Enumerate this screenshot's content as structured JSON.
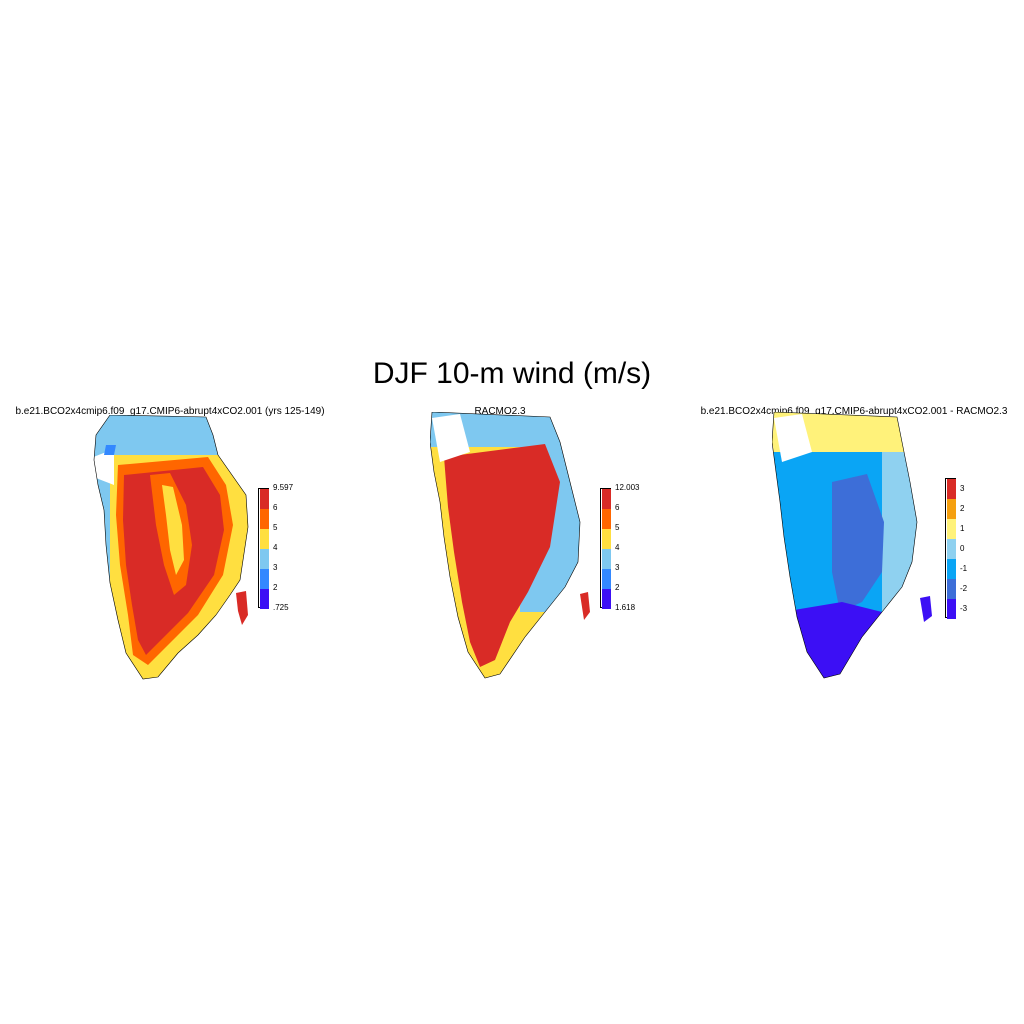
{
  "title": "DJF 10-m wind (m/s)",
  "panels": [
    {
      "id": "p1",
      "title": "b.e21.BCO2x4cmip6.f09_g17.CMIP6-abrupt4xCO2.001 (yrs 125-149)",
      "colorbar": {
        "colors": [
          "#3c0ff5",
          "#3388ff",
          "#7ec8f0",
          "#ffdf40",
          "#ff6600",
          "#d92b26"
        ],
        "labels": [
          ".725",
          "2",
          "3",
          "4",
          "5",
          "6",
          "9.597"
        ]
      }
    },
    {
      "id": "p2",
      "title": "RACMO2.3",
      "colorbar": {
        "colors": [
          "#3c0ff5",
          "#3388ff",
          "#7ec8f0",
          "#ffdf40",
          "#ff6600",
          "#d92b26"
        ],
        "labels": [
          "1.618",
          "2",
          "3",
          "4",
          "5",
          "6",
          "12.003"
        ]
      }
    },
    {
      "id": "p3",
      "title": "b.e21.BCO2x4cmip6.f09_g17.CMIP6-abrupt4xCO2.001 - RACMO2.3",
      "colorbar": {
        "colors": [
          "#3c0ff5",
          "#3d6ed8",
          "#0aa5f5",
          "#8fd1f0",
          "#fff27a",
          "#f5a00f",
          "#d92b26"
        ],
        "labels": [
          "-3",
          "-2",
          "-1",
          "0",
          "1",
          "2",
          "3"
        ]
      }
    }
  ]
}
